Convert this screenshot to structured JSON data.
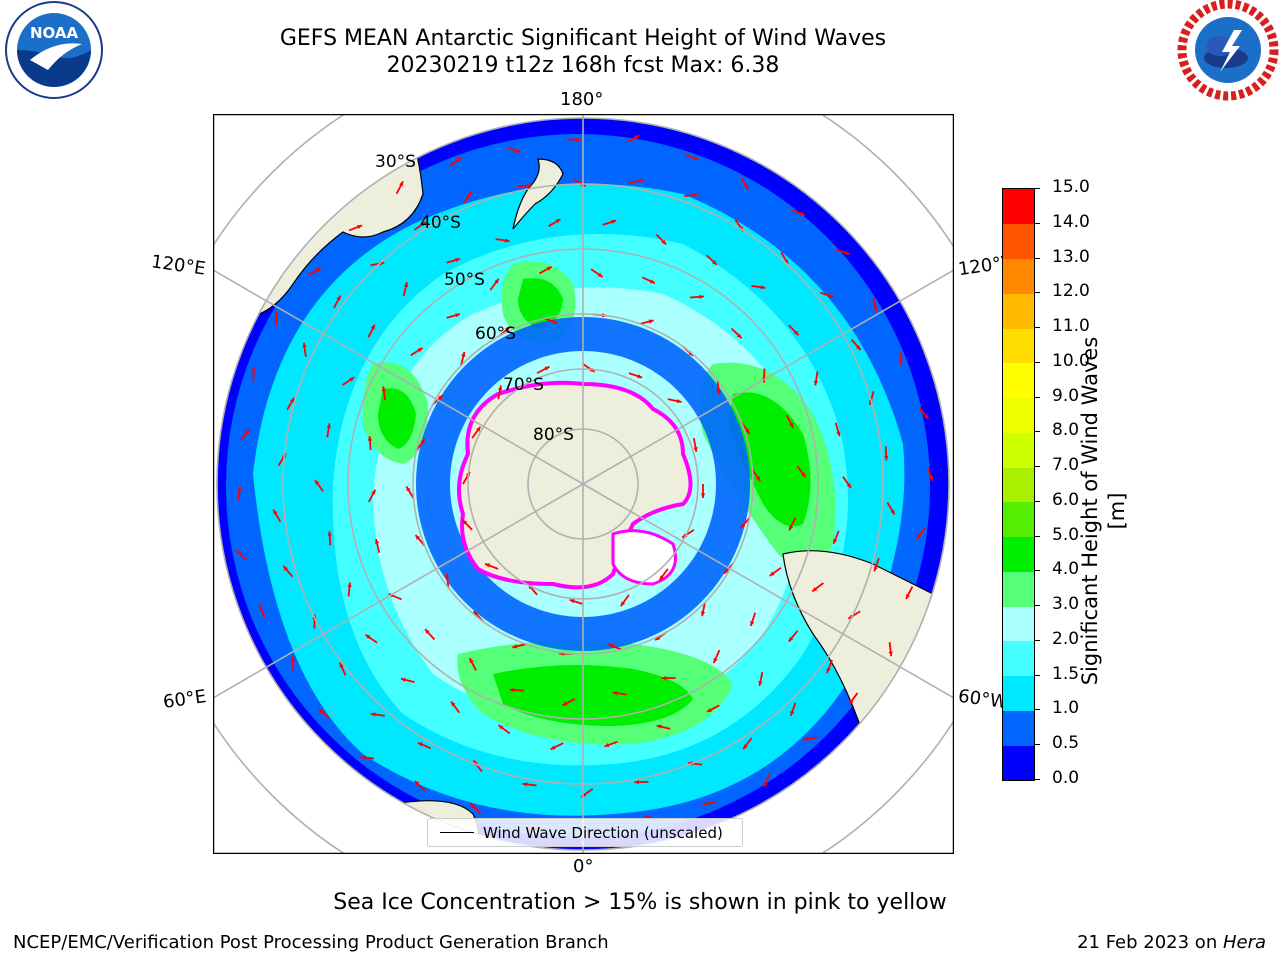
{
  "title": {
    "line1": "GEFS MEAN Antarctic Significant Height of Wind Waves",
    "line2": "20230219 t12z 168h fcst   Max: 6.38"
  },
  "logos": {
    "left": "NOAA",
    "left_ring_text": "NATIONAL OCEANIC AND ATMOSPHERIC ADMINISTRATION · U.S. DEPARTMENT OF COMMERCE",
    "right_ring_text": "NATIONAL WEATHER SERVICE"
  },
  "map": {
    "projection": "south-polar-stereographic",
    "longitude_labels": {
      "top": "180°",
      "bottom": "0°",
      "upper_left": "120°E",
      "upper_right": "120°W",
      "lower_left": "60°E",
      "lower_right": "60°W"
    },
    "latitude_labels": [
      "30°S",
      "40°S",
      "50°S",
      "60°S",
      "70°S",
      "80°S"
    ],
    "legend_label": "Wind Wave Direction (unscaled)",
    "colors": {
      "land": "#eeeedd",
      "ocean_levels": [
        "#0000ff",
        "#0066ff",
        "#00e8ff",
        "#44ffff",
        "#aaffff",
        "#55ff77",
        "#00ee00",
        "#55ee00"
      ],
      "arrow": "#ff0000",
      "sea_ice": [
        "#ff00ff",
        "#ffff00"
      ],
      "grid": "#b0b0b0"
    }
  },
  "colorbar": {
    "title": "Significant Height of Wind Waves [m]",
    "ticks": [
      "0.0",
      "0.5",
      "1.0",
      "1.5",
      "2.0",
      "3.0",
      "4.0",
      "5.0",
      "6.0",
      "7.0",
      "8.0",
      "9.0",
      "10.0",
      "11.0",
      "12.0",
      "13.0",
      "14.0",
      "15.0"
    ],
    "colors": [
      "#0000ff",
      "#0066ff",
      "#00e8ff",
      "#44ffff",
      "#aaffff",
      "#55ff77",
      "#00ee00",
      "#55ee00",
      "#aaee00",
      "#ccff00",
      "#eeff00",
      "#ffff00",
      "#ffdd00",
      "#ffbb00",
      "#ff8800",
      "#ff5500",
      "#ff0000"
    ]
  },
  "footer": {
    "note": "Sea Ice Concentration > 15% is shown in pink to yellow",
    "left": "NCEP/EMC/Verification Post Processing Product Generation Branch",
    "right_date": "21 Feb 2023 on ",
    "right_host": "Hera"
  }
}
